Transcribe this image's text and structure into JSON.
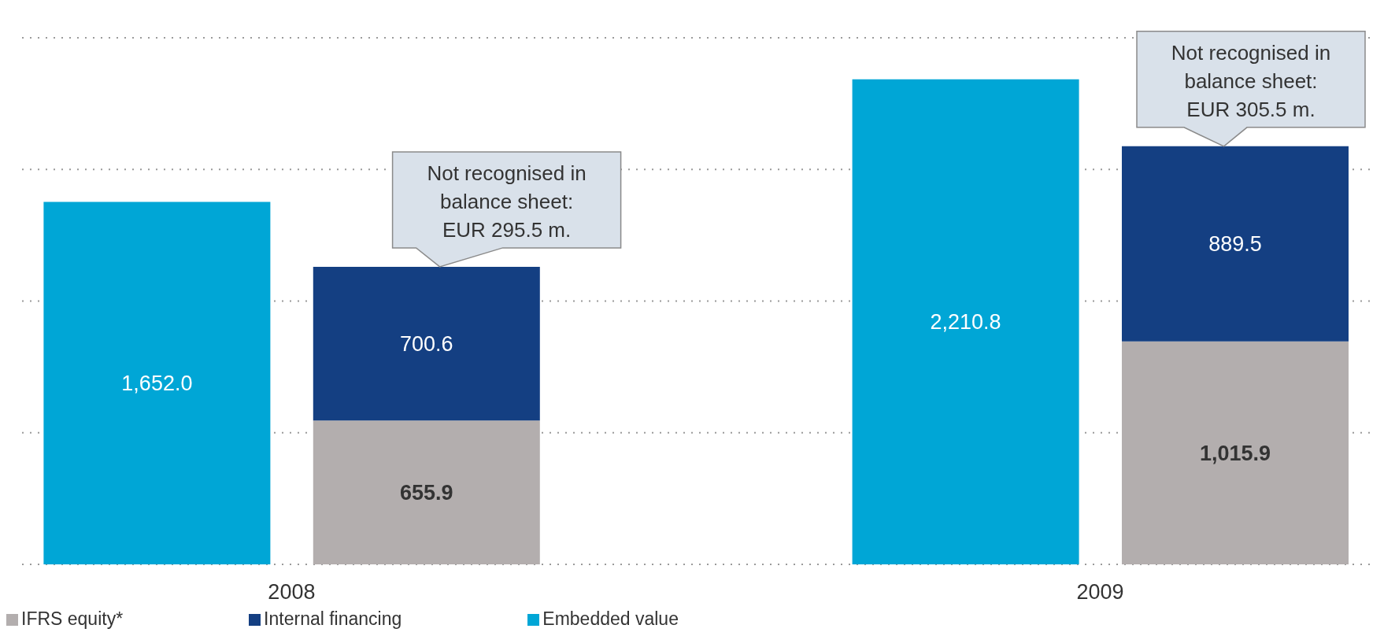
{
  "chart_data": {
    "type": "bar",
    "stacked": true,
    "categories": [
      "2008",
      null,
      null,
      "2009",
      null
    ],
    "series": [
      {
        "name": "IFRS equity*",
        "color": "#b3aeae",
        "values": [
          null,
          655.9,
          null,
          null,
          1015.9
        ],
        "value_labels": [
          null,
          "655.9",
          null,
          null,
          "1,015.9"
        ]
      },
      {
        "name": "Internal financing",
        "color": "#143f82",
        "values": [
          null,
          700.6,
          null,
          null,
          889.5
        ],
        "value_labels": [
          null,
          "700.6",
          null,
          null,
          "889.5"
        ]
      },
      {
        "name": "Embedded value",
        "color": "#00a6d6",
        "values": [
          1652.0,
          null,
          null,
          2210.8,
          null
        ],
        "value_labels": [
          "1,652.0",
          null,
          null,
          "2,210.8",
          null
        ]
      }
    ],
    "ylim": [
      0,
      2400
    ],
    "yticks": [
      {
        "value": 0,
        "label": null
      },
      {
        "value": 600,
        "label": null
      },
      {
        "value": 1200,
        "label": null
      },
      {
        "value": 1800,
        "label": null
      },
      {
        "value": 2400,
        "label": null
      }
    ],
    "tick_labels": "x",
    "grid": "y",
    "legend": "bottom left",
    "annotations": [
      {
        "text": "Not recognised in balance sheet: EUR 295.5 m.",
        "y": 1356.5
      },
      {
        "text": "Not recognised in balance sheet: EUR 305.5 m.",
        "y": 1905.4
      }
    ]
  }
}
